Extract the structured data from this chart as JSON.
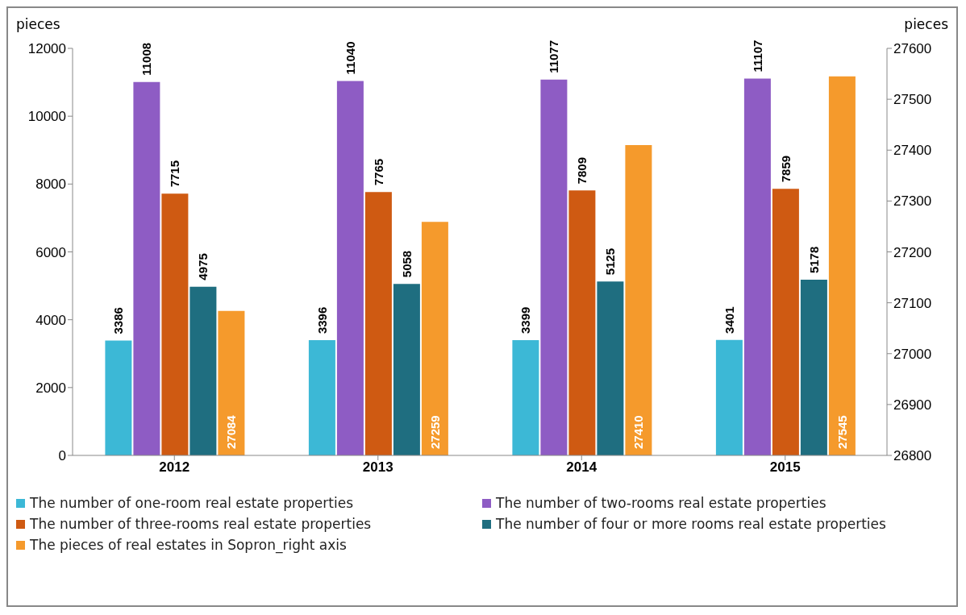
{
  "chart_data": {
    "type": "bar",
    "ylabel": "pieces",
    "y2label": "pieces",
    "categories": [
      "2012",
      "2013",
      "2014",
      "2015"
    ],
    "series": [
      {
        "name": "The number of one-room real estate properties",
        "color": "#3cb8d6",
        "values": [
          3386,
          3396,
          3399,
          3401
        ]
      },
      {
        "name": "The number of two-rooms real estate properties",
        "color": "#8e5cc4",
        "values": [
          11008,
          11040,
          11077,
          11107
        ]
      },
      {
        "name": "The number of three-rooms real estate properties",
        "color": "#cf5a12",
        "values": [
          7715,
          7765,
          7809,
          7859
        ]
      },
      {
        "name": "The number of four or more rooms real estate properties",
        "color": "#1f6e80",
        "values": [
          4975,
          5058,
          5125,
          5178
        ]
      },
      {
        "name": "The pieces of real estates in Sopron_right axis",
        "color": "#f59a2c",
        "values": [
          27084,
          27259,
          27410,
          27545
        ],
        "axis": "y2"
      }
    ],
    "ylim": [
      0,
      12000
    ],
    "yticks": [
      0,
      2000,
      4000,
      6000,
      8000,
      10000,
      12000
    ],
    "y2lim": [
      26800,
      27600
    ],
    "y2ticks": [
      26800,
      26900,
      27000,
      27100,
      27200,
      27300,
      27400,
      27500,
      27600
    ],
    "data_labels": true,
    "legend": "bottom",
    "grid": false
  }
}
